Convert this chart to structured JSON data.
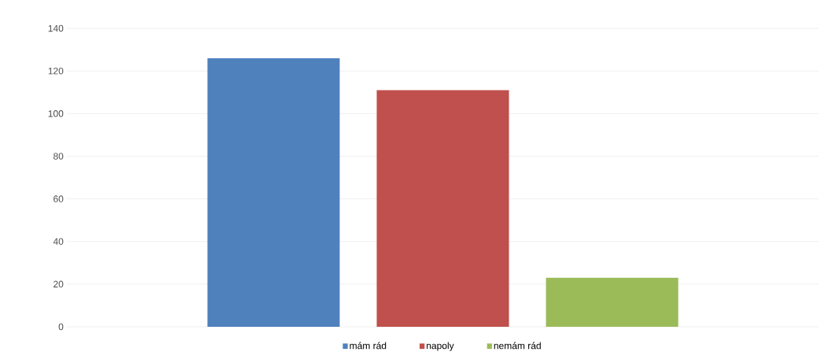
{
  "chart_data": {
    "type": "bar",
    "categories": [
      null
    ],
    "series": [
      {
        "name": "mám rád",
        "color": "#4f81bd",
        "values": [
          126
        ]
      },
      {
        "name": "napoly",
        "color": "#c0504d",
        "values": [
          111
        ]
      },
      {
        "name": "nemám rád",
        "color": "#9bbb59",
        "values": [
          23
        ]
      }
    ],
    "ylim": [
      0,
      140
    ],
    "yticks": [
      0,
      20,
      40,
      60,
      80,
      100,
      120,
      140
    ],
    "grid": "y",
    "legend": "bottom"
  }
}
